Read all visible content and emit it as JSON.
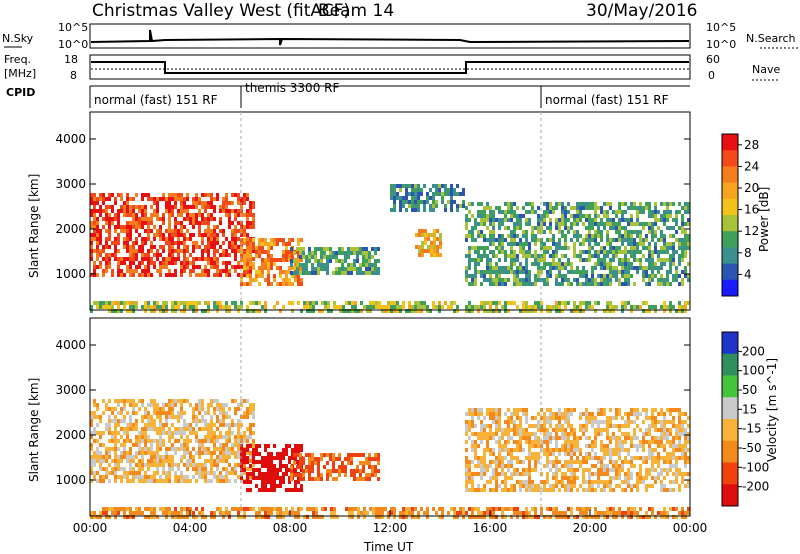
{
  "header": {
    "title": "Christmas Valley West (fitACF)",
    "beam": "Beam 14",
    "date": "30/May/2016"
  },
  "top_panels": {
    "nsky_label": "N.Sky",
    "nsearch_label": "N.Search",
    "freq_label_1": "Freq.",
    "freq_label_2": "[MHz]",
    "nave_label": "Nave",
    "cpid_label": "CPID",
    "nsky_ticks": [
      "10^5",
      "10^0"
    ],
    "nsearch_ticks": [
      "10^5",
      "10^0"
    ],
    "freq_ticks": [
      "18",
      "8"
    ],
    "nave_ticks": [
      "60",
      "0"
    ],
    "modes": [
      "normal (fast) 151 RF",
      "themis 3300 RF",
      "normal (fast) 151 RF"
    ]
  },
  "chart_data": [
    {
      "type": "heatmap",
      "panel": "power",
      "ylabel": "Slant Range [km]",
      "xlabel": "",
      "x_ticks": [
        "00:00",
        "04:00",
        "08:00",
        "12:00",
        "16:00",
        "20:00",
        "00:00"
      ],
      "y_ticks": [
        1000,
        2000,
        3000,
        4000
      ],
      "ylim": [
        200,
        4600
      ],
      "xlim_hours": [
        0,
        24
      ],
      "colorbar_label": "Power [dB]",
      "colorbar_ticks": [
        4,
        8,
        12,
        16,
        20,
        24,
        28
      ],
      "colorbar_range": [
        0,
        30
      ],
      "colorbar_colors": [
        "#1a1aff",
        "#2b55b0",
        "#3c8f8f",
        "#3fa05a",
        "#a8c23a",
        "#f2c21a",
        "#f7a320",
        "#f57d1e",
        "#f24a18",
        "#e81010"
      ],
      "regions": [
        {
          "t0": 0.0,
          "t1": 6.5,
          "r0": 1000,
          "r1": 2800,
          "level": 26
        },
        {
          "t0": 6.0,
          "t1": 8.5,
          "r0": 800,
          "r1": 1800,
          "level": 22
        },
        {
          "t0": 8.0,
          "t1": 11.5,
          "r0": 1000,
          "r1": 1600,
          "level": 10
        },
        {
          "t0": 13.0,
          "t1": 14.0,
          "r0": 1400,
          "r1": 2000,
          "level": 18
        },
        {
          "t0": 12.0,
          "t1": 15.0,
          "r0": 2400,
          "r1": 3000,
          "level": 8
        },
        {
          "t0": 15.0,
          "t1": 24.0,
          "r0": 800,
          "r1": 2600,
          "level": 10
        },
        {
          "t0": 0.0,
          "t1": 24.0,
          "r0": 200,
          "r1": 400,
          "level": 14
        }
      ]
    },
    {
      "type": "heatmap",
      "panel": "velocity",
      "ylabel": "Slant Range [km]",
      "xlabel": "Time UT",
      "x_ticks": [
        "00:00",
        "04:00",
        "08:00",
        "12:00",
        "16:00",
        "20:00",
        "00:00"
      ],
      "y_ticks": [
        1000,
        2000,
        3000,
        4000
      ],
      "ylim": [
        200,
        4600
      ],
      "xlim_hours": [
        0,
        24
      ],
      "colorbar_label": "Velocity [m s^-1]",
      "colorbar_ticks": [
        200,
        100,
        50,
        15,
        -15,
        -50,
        -100,
        -200
      ],
      "colorbar_colors": [
        "#1f35c8",
        "#2f8f5f",
        "#44c43a",
        "#c9c9c9",
        "#f7b23a",
        "#f58a1c",
        "#f0420f",
        "#e00d0d"
      ],
      "regions": [
        {
          "t0": 0.0,
          "t1": 6.5,
          "r0": 1000,
          "r1": 2800,
          "value": 0
        },
        {
          "t0": 6.0,
          "t1": 8.5,
          "r0": 800,
          "r1": 1800,
          "value": -150
        },
        {
          "t0": 8.0,
          "t1": 11.5,
          "r0": 1000,
          "r1": 1600,
          "value": -60
        },
        {
          "t0": 15.0,
          "t1": 24.0,
          "r0": 800,
          "r1": 2600,
          "value": 0
        },
        {
          "t0": 0.0,
          "t1": 24.0,
          "r0": 200,
          "r1": 400,
          "value": -30
        }
      ]
    }
  ]
}
